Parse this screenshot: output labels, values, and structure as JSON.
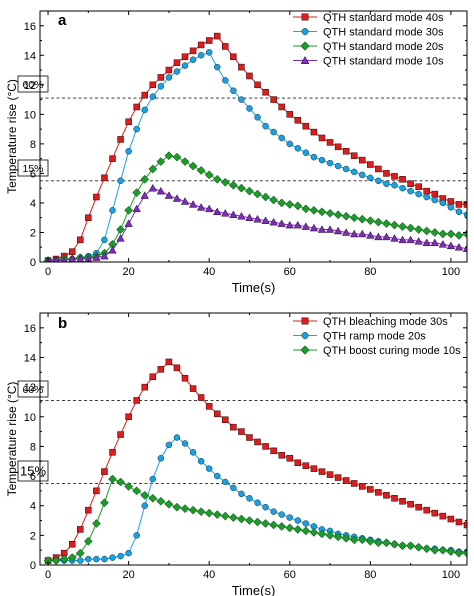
{
  "chart_data": [
    {
      "panel": "a",
      "type": "scatter",
      "xlabel": "Time(s)",
      "ylabel": "Temperature rise (°C)",
      "xlim": [
        -2,
        104
      ],
      "ylim": [
        0,
        17
      ],
      "xticks": [
        0,
        20,
        40,
        60,
        80,
        100
      ],
      "yticks": [
        0,
        2,
        4,
        6,
        8,
        10,
        12,
        14,
        16
      ],
      "grid": false,
      "legend": "top-right",
      "annotations": [
        {
          "label": "60%",
          "y": 11.1,
          "style": "dashed"
        },
        {
          "label": "15%",
          "y": 5.5,
          "style": "dashed"
        }
      ],
      "series": [
        {
          "name": "QTH standard mode 40s",
          "color": "#d81e1e",
          "marker": "square",
          "x": [
            0,
            2,
            4,
            6,
            8,
            10,
            12,
            14,
            16,
            18,
            20,
            22,
            24,
            26,
            28,
            30,
            32,
            34,
            36,
            38,
            40,
            42,
            44,
            46,
            48,
            50,
            52,
            54,
            56,
            58,
            60,
            62,
            64,
            66,
            68,
            70,
            72,
            74,
            76,
            78,
            80,
            82,
            84,
            86,
            88,
            90,
            92,
            94,
            96,
            98,
            100,
            102,
            104
          ],
          "y": [
            0.1,
            0.2,
            0.4,
            0.7,
            1.5,
            3.0,
            4.4,
            5.7,
            7.0,
            8.3,
            9.5,
            10.5,
            11.3,
            12.0,
            12.5,
            13.0,
            13.5,
            13.9,
            14.3,
            14.7,
            15.0,
            15.3,
            14.6,
            13.9,
            13.2,
            12.6,
            12.0,
            11.5,
            11.0,
            10.5,
            10.0,
            9.6,
            9.2,
            8.8,
            8.4,
            8.1,
            7.8,
            7.5,
            7.2,
            6.9,
            6.6,
            6.3,
            6.0,
            5.8,
            5.6,
            5.3,
            5.1,
            4.8,
            4.6,
            4.3,
            4.1,
            3.9,
            3.9
          ]
        },
        {
          "name": "QTH standard mode 30s",
          "color": "#1ea0e0",
          "marker": "circle",
          "x": [
            0,
            2,
            4,
            6,
            8,
            10,
            12,
            14,
            16,
            18,
            20,
            22,
            24,
            26,
            28,
            30,
            32,
            34,
            36,
            38,
            40,
            42,
            44,
            46,
            48,
            50,
            52,
            54,
            56,
            58,
            60,
            62,
            64,
            66,
            68,
            70,
            72,
            74,
            76,
            78,
            80,
            82,
            84,
            86,
            88,
            90,
            92,
            94,
            96,
            98,
            100,
            102,
            104
          ],
          "y": [
            0.1,
            0.1,
            0.2,
            0.2,
            0.3,
            0.4,
            0.6,
            1.5,
            3.5,
            5.5,
            7.5,
            9.0,
            10.3,
            11.2,
            11.9,
            12.5,
            12.9,
            13.3,
            13.7,
            14.0,
            14.2,
            13.2,
            12.3,
            11.6,
            11.0,
            10.4,
            9.8,
            9.2,
            8.8,
            8.4,
            8.0,
            7.7,
            7.4,
            7.1,
            6.9,
            6.7,
            6.5,
            6.3,
            6.1,
            5.9,
            5.7,
            5.5,
            5.3,
            5.2,
            5.0,
            4.8,
            4.6,
            4.4,
            4.2,
            4.0,
            3.7,
            3.4,
            3.2
          ]
        },
        {
          "name": "QTH standard mode 20s",
          "color": "#1c9a2a",
          "marker": "diamond",
          "x": [
            0,
            2,
            4,
            6,
            8,
            10,
            12,
            14,
            16,
            18,
            20,
            22,
            24,
            26,
            28,
            30,
            32,
            34,
            36,
            38,
            40,
            42,
            44,
            46,
            48,
            50,
            52,
            54,
            56,
            58,
            60,
            62,
            64,
            66,
            68,
            70,
            72,
            74,
            76,
            78,
            80,
            82,
            84,
            86,
            88,
            90,
            92,
            94,
            96,
            98,
            100,
            102,
            104
          ],
          "y": [
            0.1,
            0.1,
            0.2,
            0.2,
            0.3,
            0.3,
            0.4,
            0.6,
            1.2,
            2.2,
            3.5,
            4.7,
            5.6,
            6.3,
            6.8,
            7.2,
            7.1,
            6.8,
            6.5,
            6.2,
            5.9,
            5.6,
            5.4,
            5.2,
            5.0,
            4.8,
            4.6,
            4.4,
            4.2,
            4.0,
            3.9,
            3.8,
            3.6,
            3.5,
            3.4,
            3.3,
            3.2,
            3.1,
            3.0,
            2.9,
            2.8,
            2.7,
            2.6,
            2.5,
            2.4,
            2.3,
            2.2,
            2.1,
            2.0,
            1.9,
            1.9,
            1.8,
            1.9
          ]
        },
        {
          "name": "QTH standard mode 10s",
          "color": "#7a2fb5",
          "marker": "triangle",
          "x": [
            0,
            2,
            4,
            6,
            8,
            10,
            12,
            14,
            16,
            18,
            20,
            22,
            24,
            26,
            28,
            30,
            32,
            34,
            36,
            38,
            40,
            42,
            44,
            46,
            48,
            50,
            52,
            54,
            56,
            58,
            60,
            62,
            64,
            66,
            68,
            70,
            72,
            74,
            76,
            78,
            80,
            82,
            84,
            86,
            88,
            90,
            92,
            94,
            96,
            98,
            100,
            102,
            104
          ],
          "y": [
            0.1,
            0.1,
            0.1,
            0.2,
            0.2,
            0.2,
            0.3,
            0.4,
            0.8,
            1.6,
            2.6,
            3.6,
            4.5,
            5.0,
            4.8,
            4.5,
            4.3,
            4.1,
            3.9,
            3.7,
            3.6,
            3.4,
            3.3,
            3.2,
            3.1,
            3.0,
            2.9,
            2.8,
            2.7,
            2.6,
            2.5,
            2.5,
            2.4,
            2.3,
            2.2,
            2.2,
            2.1,
            2.0,
            1.9,
            1.9,
            1.8,
            1.7,
            1.7,
            1.6,
            1.5,
            1.5,
            1.4,
            1.3,
            1.3,
            1.2,
            1.1,
            1.0,
            0.9
          ]
        }
      ]
    },
    {
      "panel": "b",
      "type": "scatter",
      "xlabel": "Time(s)",
      "ylabel": "Temperature rise (°C)",
      "xlim": [
        -2,
        104
      ],
      "ylim": [
        0,
        17
      ],
      "xticks": [
        0,
        20,
        40,
        60,
        80,
        100
      ],
      "yticks": [
        0,
        2,
        4,
        6,
        8,
        10,
        12,
        14,
        16
      ],
      "grid": false,
      "legend": "top-right",
      "annotations": [
        {
          "label": "60%",
          "y": 11.1,
          "style": "dashed"
        },
        {
          "label": "15%",
          "y": 5.5,
          "style": "dashed"
        }
      ],
      "series": [
        {
          "name": "QTH bleaching mode 30s",
          "color": "#d81e1e",
          "marker": "square",
          "x": [
            0,
            2,
            4,
            6,
            8,
            10,
            12,
            14,
            16,
            18,
            20,
            22,
            24,
            26,
            28,
            30,
            32,
            34,
            36,
            38,
            40,
            42,
            44,
            46,
            48,
            50,
            52,
            54,
            56,
            58,
            60,
            62,
            64,
            66,
            68,
            70,
            72,
            74,
            76,
            78,
            80,
            82,
            84,
            86,
            88,
            90,
            92,
            94,
            96,
            98,
            100,
            102,
            104
          ],
          "y": [
            0.3,
            0.5,
            0.8,
            1.4,
            2.4,
            3.7,
            5.0,
            6.3,
            7.6,
            8.8,
            10.0,
            11.1,
            12.0,
            12.7,
            13.2,
            13.7,
            13.3,
            12.6,
            11.9,
            11.3,
            10.7,
            10.2,
            9.8,
            9.3,
            9.0,
            8.6,
            8.3,
            8.0,
            7.7,
            7.4,
            7.2,
            6.9,
            6.7,
            6.5,
            6.3,
            6.1,
            5.9,
            5.7,
            5.5,
            5.3,
            5.1,
            4.9,
            4.7,
            4.5,
            4.3,
            4.1,
            3.9,
            3.7,
            3.5,
            3.3,
            3.1,
            2.9,
            2.7
          ]
        },
        {
          "name": "QTH ramp mode 20s",
          "color": "#1ea0e0",
          "marker": "circle",
          "x": [
            0,
            2,
            4,
            6,
            8,
            10,
            12,
            14,
            16,
            18,
            20,
            22,
            24,
            26,
            28,
            30,
            32,
            34,
            36,
            38,
            40,
            42,
            44,
            46,
            48,
            50,
            52,
            54,
            56,
            58,
            60,
            62,
            64,
            66,
            68,
            70,
            72,
            74,
            76,
            78,
            80,
            82,
            84,
            86,
            88,
            90,
            92,
            94,
            96,
            98,
            100,
            102,
            104
          ],
          "y": [
            0.3,
            0.3,
            0.3,
            0.3,
            0.3,
            0.4,
            0.4,
            0.4,
            0.5,
            0.6,
            0.8,
            2.0,
            4.0,
            5.8,
            7.2,
            8.1,
            8.6,
            8.2,
            7.6,
            7.0,
            6.5,
            6.0,
            5.6,
            5.2,
            4.8,
            4.5,
            4.2,
            3.9,
            3.6,
            3.4,
            3.2,
            3.0,
            2.8,
            2.6,
            2.4,
            2.3,
            2.1,
            2.0,
            1.9,
            1.8,
            1.7,
            1.6,
            1.5,
            1.4,
            1.3,
            1.3,
            1.2,
            1.1,
            1.1,
            1.0,
            1.0,
            0.9,
            0.9
          ]
        },
        {
          "name": "QTH boost curing mode 10s",
          "color": "#1c9a2a",
          "marker": "diamond",
          "x": [
            0,
            2,
            4,
            6,
            8,
            10,
            12,
            14,
            16,
            18,
            20,
            22,
            24,
            26,
            28,
            30,
            32,
            34,
            36,
            38,
            40,
            42,
            44,
            46,
            48,
            50,
            52,
            54,
            56,
            58,
            60,
            62,
            64,
            66,
            68,
            70,
            72,
            74,
            76,
            78,
            80,
            82,
            84,
            86,
            88,
            90,
            92,
            94,
            96,
            98,
            100,
            102,
            104
          ],
          "y": [
            0.3,
            0.3,
            0.4,
            0.5,
            0.8,
            1.6,
            2.8,
            4.2,
            5.8,
            5.6,
            5.3,
            5.0,
            4.7,
            4.5,
            4.3,
            4.1,
            3.9,
            3.8,
            3.7,
            3.6,
            3.5,
            3.4,
            3.3,
            3.2,
            3.1,
            3.0,
            2.9,
            2.8,
            2.7,
            2.6,
            2.5,
            2.4,
            2.3,
            2.2,
            2.1,
            2.0,
            1.9,
            1.8,
            1.7,
            1.7,
            1.6,
            1.5,
            1.5,
            1.4,
            1.3,
            1.3,
            1.2,
            1.1,
            1.0,
            1.0,
            0.9,
            0.8,
            0.8
          ]
        }
      ]
    }
  ]
}
